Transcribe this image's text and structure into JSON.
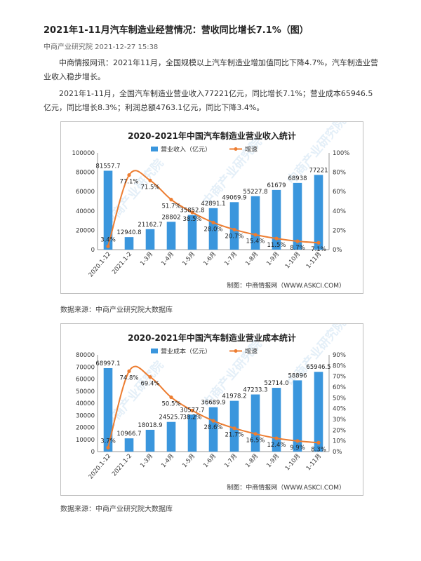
{
  "article": {
    "title": "2021年1-11月汽车制造业经营情况：营收同比增长7.1%（图）",
    "meta": "中商产业研究院 2021-12-27 15:38",
    "paragraphs": [
      "中商情报网讯：2021年11月，全国规模以上汽车制造业增加值同比下降4.7%，汽车制造业营业收入稳步增长。",
      "2021年1-11月，全国汽车制造业营业收入77221亿元，同比增长7.1%；营业成本65946.5亿元，同比增长8.3%；利润总额4763.1亿元，同比下降3.4%。"
    ],
    "sources": [
      "数据来源：中商产业研究院大数据库",
      "数据来源：中商产业研究院大数据库"
    ]
  },
  "colors": {
    "bar": "#3a96dd",
    "line": "#ed7d31",
    "watermark": "#cfe3f3"
  },
  "chart_data": [
    {
      "type": "bar",
      "title": "2020-2021年中国汽车制造业营业收入统计",
      "credit": "制图：中商情报网（WWW.ASKCI.COM）",
      "watermark": "中商产业研究院",
      "categories": [
        "2020.1-12",
        "2021.1-2",
        "1-3月",
        "1-4月",
        "1-5月",
        "1-6月",
        "1-7月",
        "1-8月",
        "1-9月",
        "1-10月",
        "1-11月"
      ],
      "series": [
        {
          "name": "营业收入（亿元）",
          "type": "bar",
          "axis": "left",
          "values": [
            81557.7,
            12940.8,
            21162.7,
            28802,
            35852.8,
            42891.1,
            49069.9,
            55227.8,
            61679,
            68938,
            77221
          ],
          "labels": [
            "81557.7",
            "12940.8",
            "21162.7",
            "28802",
            "35852.8",
            "42891.1",
            "49069.9",
            "55227.8",
            "61679",
            "68938",
            "77221"
          ]
        },
        {
          "name": "增速",
          "type": "line",
          "axis": "right",
          "values": [
            3.4,
            77.1,
            71.5,
            51.7,
            38.5,
            28.0,
            20.7,
            15.4,
            11.5,
            8.7,
            7.1
          ],
          "labels": [
            "3.4%",
            "77.1%",
            "71.5%",
            "51.7%",
            "38.5%",
            "28.0%",
            "20.7%",
            "15.4%",
            "11.5%",
            "8.7%",
            "7.1%"
          ]
        }
      ],
      "y_left": {
        "min": 0,
        "max": 100000,
        "ticks": [
          "0",
          "20000",
          "40000",
          "60000",
          "80000",
          "100000"
        ]
      },
      "y_right": {
        "min": 0,
        "max": 100,
        "ticks": [
          "0%",
          "20%",
          "40%",
          "60%",
          "80%",
          "100%"
        ]
      },
      "legend": "top-center"
    },
    {
      "type": "bar",
      "title": "2020-2021年中国汽车制造业营业成本统计",
      "credit": "制图：中商情报网（WWW.ASKCI.COM）",
      "watermark": "中商产业研究院",
      "categories": [
        "2020.1-12",
        "2021.1-2",
        "1-3月",
        "1-4月",
        "1-5月",
        "1-6月",
        "1-7月",
        "1-8月",
        "1-9月",
        "1-10月",
        "1-11月"
      ],
      "series": [
        {
          "name": "营业成本（亿元）",
          "type": "bar",
          "axis": "left",
          "values": [
            68997.1,
            10966.7,
            18018.9,
            24525.7,
            30577.7,
            36689.9,
            41978.2,
            47233.3,
            52714.0,
            58896,
            65946.5
          ],
          "labels": [
            "68997.1",
            "10966.7",
            "18018.9",
            "24525.7",
            "30577.7",
            "36689.9",
            "41978.2",
            "47233.3",
            "52714.0",
            "58896",
            "65946.5"
          ]
        },
        {
          "name": "增速",
          "type": "line",
          "axis": "right",
          "values": [
            3.7,
            74.8,
            69.4,
            50.5,
            38.2,
            28.6,
            21.7,
            16.5,
            12.4,
            9.9,
            8.3
          ],
          "labels": [
            "3.7%",
            "74.8%",
            "69.4%",
            "50.5%",
            "38.2%",
            "28.6%",
            "21.7%",
            "16.5%",
            "12.4%",
            "9.9%",
            "8.3%"
          ]
        }
      ],
      "y_left": {
        "min": 0,
        "max": 80000,
        "ticks": [
          "0",
          "10000",
          "20000",
          "30000",
          "40000",
          "50000",
          "60000",
          "70000",
          "80000"
        ]
      },
      "y_right": {
        "min": 0,
        "max": 90,
        "ticks": [
          "0%",
          "10%",
          "20%",
          "30%",
          "40%",
          "50%",
          "60%",
          "70%",
          "80%",
          "90%"
        ]
      },
      "legend": "top-center"
    }
  ]
}
